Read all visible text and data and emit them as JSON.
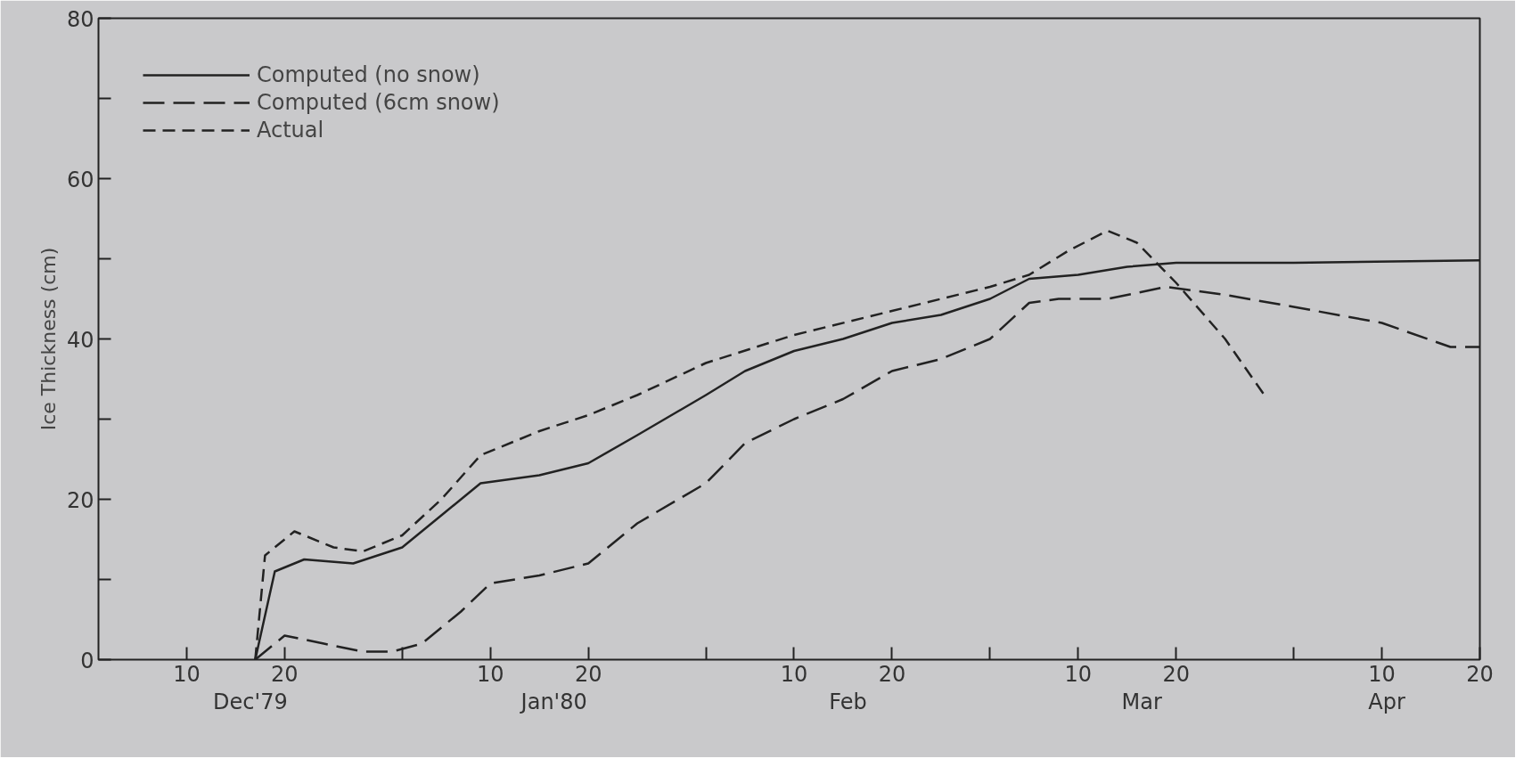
{
  "chart_data": {
    "type": "line",
    "ylabel": "Ice Thickness (cm)",
    "xlim": [
      "1979-12-01",
      "1980-04-20"
    ],
    "ylim": [
      0,
      80
    ],
    "yticks": [
      0,
      {
        "value": 10,
        "label": null
      },
      20,
      {
        "value": 30,
        "label": null
      },
      40,
      {
        "value": 50,
        "label": null
      },
      60,
      {
        "value": 70,
        "label": null
      },
      80
    ],
    "xticks": [
      {
        "value": "1979-12-10",
        "label": "10"
      },
      {
        "value": "1979-12-20",
        "label": "20"
      },
      {
        "value": "1980-01-01",
        "label": null
      },
      {
        "value": "1980-01-10",
        "label": "10"
      },
      {
        "value": "1980-01-20",
        "label": "20"
      },
      {
        "value": "1980-02-01",
        "label": null
      },
      {
        "value": "1980-02-10",
        "label": "10"
      },
      {
        "value": "1980-02-20",
        "label": "20"
      },
      {
        "value": "1980-03-01",
        "label": null
      },
      {
        "value": "1980-03-10",
        "label": "10"
      },
      {
        "value": "1980-03-20",
        "label": "20"
      },
      {
        "value": "1980-04-01",
        "label": null
      },
      {
        "value": "1980-04-10",
        "label": "10"
      },
      {
        "value": "1980-04-20",
        "label": "20"
      }
    ],
    "annotations": [
      "Dec'79",
      "Jan'80",
      "Feb",
      "Mar",
      "Apr"
    ],
    "legend": "top left",
    "grid": false,
    "series": [
      {
        "name": "Computed (no snow)",
        "color": "#222222",
        "line_style": "solid",
        "x": [
          "1979-12-17",
          "1979-12-19",
          "1979-12-22",
          "1979-12-27",
          "1980-01-01",
          "1980-01-05",
          "1980-01-09",
          "1980-01-15",
          "1980-01-20",
          "1980-01-25",
          "1980-02-01",
          "1980-02-05",
          "1980-02-10",
          "1980-02-15",
          "1980-02-20",
          "1980-02-25",
          "1980-03-01",
          "1980-03-05",
          "1980-03-10",
          "1980-03-15",
          "1980-03-20",
          "1980-04-01",
          "1980-04-20"
        ],
        "values": [
          0,
          11,
          12.5,
          12,
          14,
          18,
          22,
          23,
          24.5,
          28,
          33,
          36,
          38.5,
          40,
          42,
          43,
          45,
          47.5,
          48,
          49,
          49.5,
          49.5,
          49.8
        ]
      },
      {
        "name": "Computed (6cm snow)",
        "color": "#222222",
        "line_style": "dashed",
        "x": [
          "1979-12-17",
          "1979-12-20",
          "1979-12-24",
          "1979-12-28",
          "1979-12-31",
          "1980-01-03",
          "1980-01-07",
          "1980-01-10",
          "1980-01-15",
          "1980-01-20",
          "1980-01-25",
          "1980-02-01",
          "1980-02-05",
          "1980-02-10",
          "1980-02-15",
          "1980-02-20",
          "1980-02-25",
          "1980-03-01",
          "1980-03-05",
          "1980-03-08",
          "1980-03-13",
          "1980-03-19",
          "1980-03-25",
          "1980-04-01",
          "1980-04-10",
          "1980-04-17",
          "1980-04-20"
        ],
        "values": [
          0,
          3,
          2,
          1,
          1,
          2,
          6,
          9.5,
          10.5,
          12,
          17,
          22,
          27,
          30,
          32.5,
          36,
          37.5,
          40,
          44.5,
          45,
          45,
          46.5,
          45.5,
          44,
          42,
          39,
          39
        ]
      },
      {
        "name": "Actual",
        "color": "#222222",
        "line_style": "dashed",
        "x": [
          "1979-12-17",
          "1979-12-18",
          "1979-12-21",
          "1979-12-25",
          "1979-12-28",
          "1980-01-01",
          "1980-01-05",
          "1980-01-09",
          "1980-01-15",
          "1980-01-20",
          "1980-01-25",
          "1980-02-01",
          "1980-02-10",
          "1980-02-20",
          "1980-03-01",
          "1980-03-05",
          "1980-03-09",
          "1980-03-13",
          "1980-03-16",
          "1980-03-20",
          "1980-03-25",
          "1980-03-29"
        ],
        "values": [
          0,
          13,
          16,
          14,
          13.5,
          15.5,
          20,
          25.5,
          28.5,
          30.5,
          33,
          37,
          40.5,
          43.5,
          46.5,
          48,
          51,
          53.5,
          52,
          47,
          40,
          33
        ]
      }
    ]
  }
}
